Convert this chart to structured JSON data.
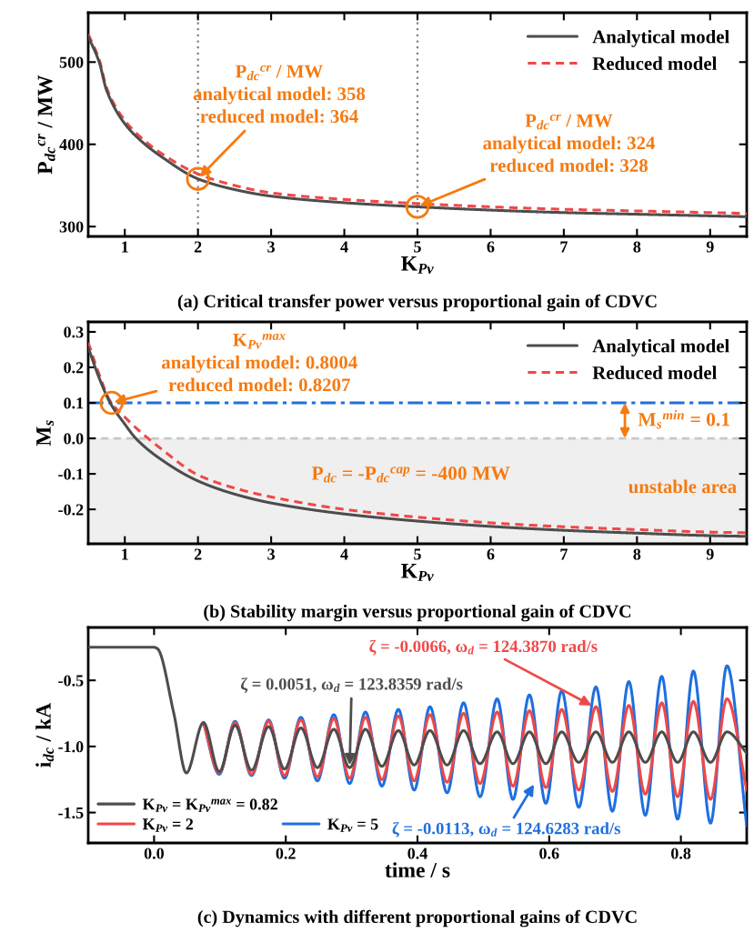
{
  "chart_data": [
    {
      "type": "line",
      "title": "(a) Critical transfer power versus proportional gain of CDVC",
      "xlabel": "K$_{Pv}$",
      "ylabel": "P$_{dc}$$^{cr}$ / MW",
      "x": [
        0.5,
        0.65,
        0.75,
        1,
        1.25,
        1.5,
        2,
        2.5,
        3,
        4,
        5,
        6,
        7,
        8,
        9,
        9.5
      ],
      "series": [
        {
          "name": "Analytical model",
          "color": "#4d4d4d",
          "line_style": "solid",
          "values": [
            531,
            500,
            466,
            425,
            402,
            385,
            358,
            345,
            337,
            329,
            324,
            320,
            317,
            315,
            313,
            312
          ]
        },
        {
          "name": "Reduced model",
          "color": "#f04848",
          "line_style": "dashed",
          "values": [
            534,
            503,
            469,
            429,
            406,
            389,
            364,
            350,
            341,
            333,
            328,
            324,
            321,
            319,
            317,
            316
          ]
        }
      ],
      "xlim": [
        0.5,
        9.5
      ],
      "xticks": [
        1,
        2,
        3,
        4,
        5,
        6,
        7,
        8,
        9
      ],
      "ylim": [
        288,
        560
      ],
      "yticks": [
        300,
        400,
        500
      ],
      "ref_lines": [
        {
          "axis": "x",
          "value": 2,
          "color": "#808080",
          "line_style": "dotted"
        },
        {
          "axis": "x",
          "value": 5,
          "color": "#808080",
          "line_style": "dotted"
        }
      ],
      "annotations": [
        {
          "text": "P$_{dc}$$^{cr}$ / MW\nanalytical model: 358\nreduced model: 364",
          "x": 2,
          "y": 358
        },
        {
          "text": "P$_{dc}$$^{cr}$ / MW\nanalytical model: 324\nreduced model: 328",
          "x": 5,
          "y": 324
        }
      ],
      "legend": "top right",
      "grid": false
    },
    {
      "type": "line",
      "title": "(b) Stability margin versus proportional gain of CDVC",
      "xlabel": "K$_{Pv}$",
      "ylabel": "M$_{s}$",
      "x": [
        0.5,
        0.65,
        0.8,
        1,
        1.15,
        1.5,
        2,
        2.5,
        3,
        4,
        5,
        6,
        7,
        8,
        9,
        9.5
      ],
      "series": [
        {
          "name": "Analytical model",
          "color": "#4d4d4d",
          "line_style": "solid",
          "values": [
            0.256,
            0.17,
            0.1,
            0.04,
            0,
            -0.06,
            -0.12,
            -0.157,
            -0.182,
            -0.213,
            -0.233,
            -0.248,
            -0.259,
            -0.267,
            -0.274,
            -0.276
          ]
        },
        {
          "name": "Reduced model",
          "color": "#f04848",
          "line_style": "dashed",
          "values": [
            0.27,
            0.18,
            0.105,
            0.06,
            0.03,
            -0.03,
            -0.103,
            -0.14,
            -0.165,
            -0.2,
            -0.222,
            -0.238,
            -0.249,
            -0.257,
            -0.264,
            -0.266
          ]
        }
      ],
      "xlim": [
        0.5,
        9.5
      ],
      "xticks": [
        1,
        2,
        3,
        4,
        5,
        6,
        7,
        8,
        9
      ],
      "ylim": [
        -0.297,
        0.328
      ],
      "yticks": [
        {
          "value": -0.2,
          "label": "-0.2"
        },
        {
          "value": -0.1,
          "label": "-0.1"
        },
        {
          "value": 0,
          "label": "0.0"
        },
        0.1,
        0.2,
        0.3
      ],
      "ref_lines": [
        {
          "axis": "y",
          "value": 0.1,
          "color": "#1f6fe0",
          "line_style": "dashdot"
        },
        {
          "axis": "y",
          "value": 0,
          "color": "#c8c8c8",
          "line_style": "dashed"
        }
      ],
      "bands": [
        {
          "axis": "y",
          "from": -0.297,
          "to": 0,
          "label": "unstable area",
          "color": "#efefef"
        }
      ],
      "annotations": [
        {
          "text": "K$_{Pv}$$^{max}$\nanalytical model: 0.8004\nreduced model: 0.8207",
          "x": 0.82,
          "y": 0.1
        },
        "P$_{dc}$ = -P$_{dc}$$^{cap}$ = -400 MW",
        "M$_{s}$$^{min}$ = 0.1"
      ],
      "legend": "top right",
      "grid": false
    },
    {
      "type": "line",
      "title": "(c) Dynamics with different proportional gains of CDVC",
      "xlabel": "time / s",
      "ylabel": "i$_{dc}$ / kA",
      "x": [
        -0.1,
        0,
        0.005,
        0.03,
        0.049,
        0.075,
        0.099,
        0.123,
        0.148,
        0.174,
        0.198,
        0.223,
        0.248,
        0.273,
        0.297,
        0.321,
        0.346,
        0.371,
        0.395,
        0.419,
        0.445,
        0.47,
        0.495,
        0.521,
        0.545,
        0.57,
        0.595,
        0.619,
        0.645,
        0.671,
        0.696,
        0.721,
        0.746,
        0.771,
        0.795,
        0.819,
        0.845,
        0.87,
        0.9
      ],
      "series": [
        {
          "name": "K$_{Pv}$ = K$_{Pv}$$^{max}$ = 0.82",
          "color": "#4d4d4d",
          "values": [
            -0.25,
            -0.25,
            -0.26,
            -0.75,
            -1.2,
            -0.82,
            -1.19,
            -0.84,
            -1.18,
            -0.85,
            -1.17,
            -0.86,
            -1.16,
            -0.87,
            -1.16,
            -0.87,
            -1.15,
            -0.88,
            -1.14,
            -0.88,
            -1.14,
            -0.88,
            -1.13,
            -0.89,
            -1.13,
            -0.89,
            -1.13,
            -0.89,
            -1.12,
            -0.89,
            -1.12,
            -0.89,
            -1.12,
            -0.89,
            -1.12,
            -0.89,
            -1.12,
            -0.89,
            -1.05
          ]
        },
        {
          "name": "K$_{Pv}$ = 2",
          "color": "#f04848",
          "values": [
            null,
            null,
            null,
            null,
            null,
            -0.82,
            -1.2,
            -0.82,
            -1.21,
            -0.81,
            -1.22,
            -0.8,
            -1.23,
            -0.79,
            -1.24,
            -0.78,
            -1.25,
            -0.77,
            -1.26,
            -0.76,
            -1.27,
            -0.75,
            -1.28,
            -0.74,
            -1.3,
            -0.73,
            -1.31,
            -0.72,
            -1.33,
            -0.7,
            -1.34,
            -0.69,
            -1.36,
            -0.67,
            -1.38,
            -0.66,
            -1.4,
            -0.64,
            -1.33
          ]
        },
        {
          "name": "K$_{Pv}$ = 5",
          "color": "#1f6fe0",
          "values": [
            null,
            null,
            null,
            null,
            null,
            -0.82,
            -1.21,
            -0.81,
            -1.22,
            -0.8,
            -1.24,
            -0.78,
            -1.26,
            -0.76,
            -1.28,
            -0.74,
            -1.3,
            -0.72,
            -1.33,
            -0.7,
            -1.35,
            -0.67,
            -1.38,
            -0.64,
            -1.4,
            -0.61,
            -1.43,
            -0.58,
            -1.46,
            -0.55,
            -1.49,
            -0.51,
            -1.52,
            -0.47,
            -1.55,
            -0.43,
            -1.58,
            -0.39,
            -1.6
          ]
        }
      ],
      "xlim": [
        -0.1,
        0.9
      ],
      "xticks": [
        {
          "value": 0,
          "label": "0.0"
        },
        0.2,
        0.4,
        0.6,
        0.8
      ],
      "ylim": [
        -1.73,
        -0.1
      ],
      "yticks": [
        {
          "value": -1.5,
          "label": "-1.5"
        },
        {
          "value": -1.0,
          "label": "-1.0"
        },
        {
          "value": -0.5,
          "label": "-0.5"
        }
      ],
      "annotations": [
        {
          "text": "ζ = 0.0051, ω$_{d}$ = 123.8359 rad/s",
          "x": 0.297,
          "y": -1.16
        },
        {
          "text": "ζ = -0.0066, ω$_{d}$ = 124.3870 rad/s",
          "x": 0.668,
          "y": -0.7
        },
        {
          "text": "ζ = -0.0113, ω$_{d}$ = 124.6283 rad/s",
          "x": 0.579,
          "y": -1.27
        }
      ],
      "legend": "bottom left",
      "grid": false
    }
  ]
}
